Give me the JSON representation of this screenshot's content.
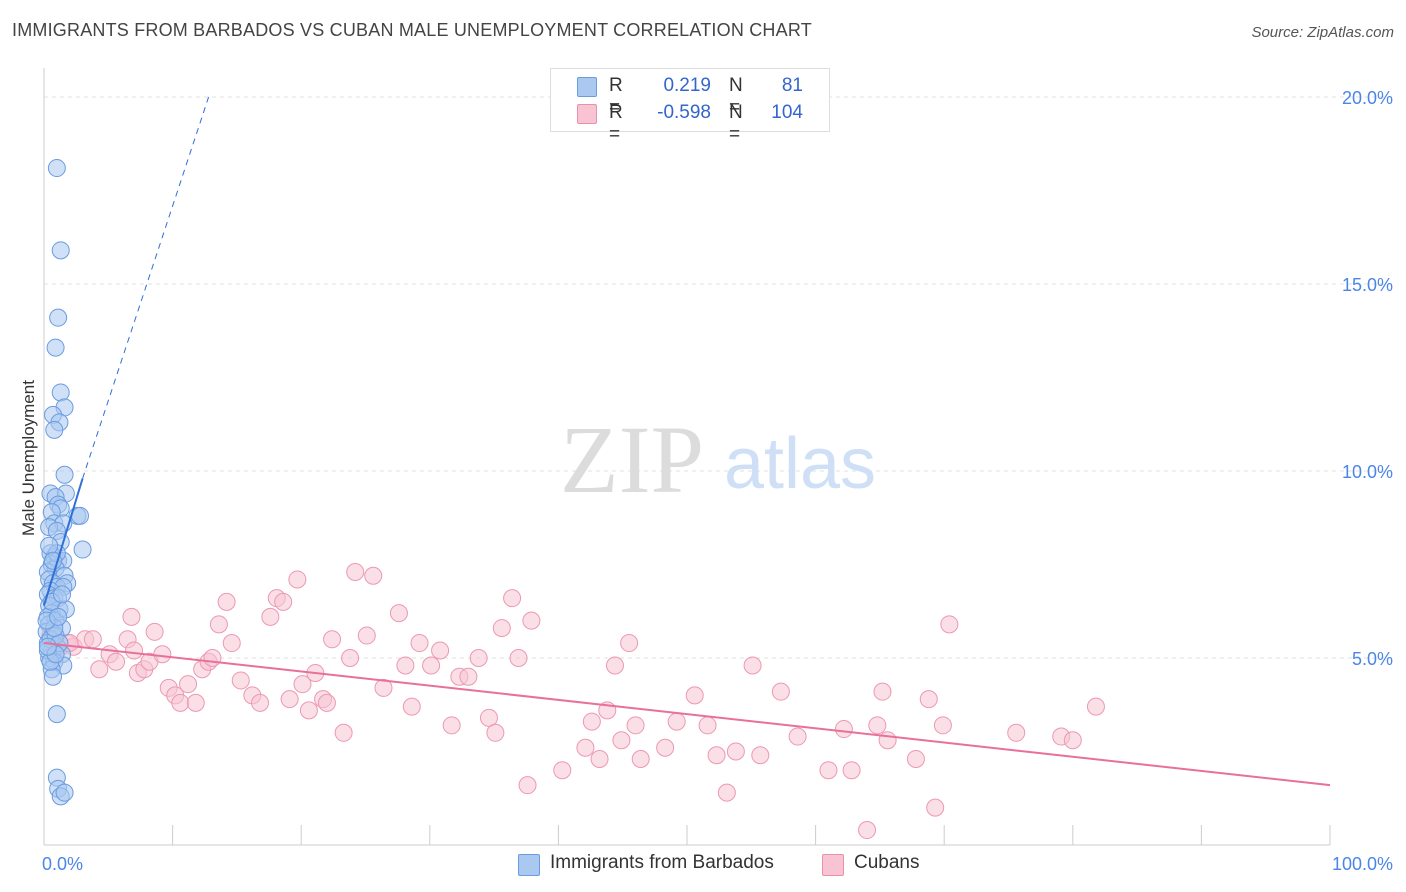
{
  "header": {
    "title": "IMMIGRANTS FROM BARBADOS VS CUBAN MALE UNEMPLOYMENT CORRELATION CHART",
    "source": "Source: ZipAtlas.com"
  },
  "watermark": {
    "zip": "ZIP",
    "atlas": "atlas"
  },
  "stats": [
    {
      "r_label": "R =",
      "r_value": "0.219",
      "n_label": "N =",
      "n_value": "81",
      "color": "#4a86e8"
    },
    {
      "r_label": "R =",
      "r_value": "-0.598",
      "n_label": "N =",
      "n_value": "104",
      "color": "#e8709a"
    }
  ],
  "legend": [
    {
      "label": "Immigrants from Barbados",
      "color": "#4a86e8"
    },
    {
      "label": "Cubans",
      "color": "#e8709a"
    }
  ],
  "colors": {
    "blue_fill": "#aac8f0",
    "blue_stroke": "#6a9ce0",
    "blue_line": "#2f6fd6",
    "pink_fill": "#f8c4d4",
    "pink_stroke": "#ec98b4",
    "pink_line": "#e8709a",
    "axis_text": "#4a86e8",
    "grid": "#e0e0e0"
  },
  "chart_data": {
    "type": "scatter",
    "title": "IMMIGRANTS FROM BARBADOS VS CUBAN MALE UNEMPLOYMENT CORRELATION CHART",
    "xlabel": "",
    "ylabel": "Male Unemployment",
    "xlim": [
      0,
      100
    ],
    "ylim": [
      0,
      20.5
    ],
    "x_tick_labels": [
      "0.0%",
      "100.0%"
    ],
    "y_ticks": [
      5,
      10,
      15,
      20
    ],
    "y_tick_labels": [
      "5.0%",
      "10.0%",
      "15.0%",
      "20.0%"
    ],
    "grid": true,
    "legend_position": "bottom-center",
    "series": [
      {
        "name": "Immigrants from Barbados",
        "points": [
          [
            1.0,
            18.1
          ],
          [
            1.3,
            15.9
          ],
          [
            1.1,
            14.1
          ],
          [
            0.9,
            13.3
          ],
          [
            1.3,
            12.1
          ],
          [
            1.6,
            11.7
          ],
          [
            0.7,
            11.5
          ],
          [
            1.2,
            11.3
          ],
          [
            0.8,
            11.1
          ],
          [
            1.6,
            9.9
          ],
          [
            0.5,
            9.4
          ],
          [
            1.7,
            9.4
          ],
          [
            0.9,
            9.3
          ],
          [
            1.1,
            9.1
          ],
          [
            1.3,
            9.0
          ],
          [
            0.6,
            8.9
          ],
          [
            2.6,
            8.8
          ],
          [
            2.8,
            8.8
          ],
          [
            0.8,
            8.6
          ],
          [
            1.5,
            8.6
          ],
          [
            0.4,
            8.5
          ],
          [
            1.0,
            8.4
          ],
          [
            1.3,
            8.1
          ],
          [
            3.0,
            7.9
          ],
          [
            0.5,
            7.8
          ],
          [
            0.8,
            7.7
          ],
          [
            1.1,
            7.6
          ],
          [
            1.5,
            7.6
          ],
          [
            0.6,
            7.5
          ],
          [
            0.9,
            7.4
          ],
          [
            0.3,
            7.3
          ],
          [
            1.6,
            7.2
          ],
          [
            0.4,
            7.1
          ],
          [
            0.7,
            7.0
          ],
          [
            1.8,
            7.0
          ],
          [
            1.0,
            6.9
          ],
          [
            1.5,
            6.9
          ],
          [
            0.5,
            6.8
          ],
          [
            0.3,
            6.7
          ],
          [
            0.8,
            6.6
          ],
          [
            1.1,
            6.6
          ],
          [
            0.4,
            6.4
          ],
          [
            1.2,
            6.3
          ],
          [
            0.6,
            6.2
          ],
          [
            0.3,
            6.1
          ],
          [
            0.9,
            6.0
          ],
          [
            0.4,
            5.9
          ],
          [
            1.4,
            5.8
          ],
          [
            0.2,
            5.7
          ],
          [
            0.7,
            5.6
          ],
          [
            0.5,
            5.5
          ],
          [
            0.3,
            5.4
          ],
          [
            1.0,
            5.3
          ],
          [
            0.6,
            5.2
          ],
          [
            1.4,
            5.1
          ],
          [
            0.4,
            5.0
          ],
          [
            0.8,
            4.9
          ],
          [
            1.5,
            4.8
          ],
          [
            0.6,
            4.7
          ],
          [
            0.7,
            4.5
          ],
          [
            1.0,
            3.5
          ],
          [
            1.0,
            1.8
          ],
          [
            1.1,
            1.5
          ],
          [
            1.3,
            1.3
          ],
          [
            1.6,
            1.4
          ],
          [
            0.5,
            5.5
          ],
          [
            0.9,
            5.6
          ],
          [
            1.2,
            5.4
          ],
          [
            0.3,
            5.2
          ],
          [
            0.6,
            6.5
          ],
          [
            1.0,
            7.8
          ],
          [
            0.4,
            8.0
          ],
          [
            1.7,
            6.3
          ],
          [
            0.8,
            5.8
          ],
          [
            0.2,
            6.0
          ],
          [
            0.5,
            4.9
          ],
          [
            1.1,
            6.1
          ],
          [
            0.9,
            5.1
          ],
          [
            0.3,
            5.3
          ],
          [
            1.4,
            6.7
          ],
          [
            0.7,
            7.6
          ]
        ]
      },
      {
        "name": "Cubans",
        "points": [
          [
            0.5,
            5.6
          ],
          [
            0.9,
            5.5
          ],
          [
            1.3,
            5.3
          ],
          [
            1.8,
            5.4
          ],
          [
            2.3,
            5.3
          ],
          [
            3.2,
            5.5
          ],
          [
            3.8,
            5.5
          ],
          [
            4.3,
            4.7
          ],
          [
            5.1,
            5.1
          ],
          [
            5.6,
            4.9
          ],
          [
            6.5,
            5.5
          ],
          [
            6.8,
            6.1
          ],
          [
            7.3,
            4.6
          ],
          [
            7.8,
            4.7
          ],
          [
            8.2,
            4.9
          ],
          [
            8.6,
            5.7
          ],
          [
            9.2,
            5.1
          ],
          [
            9.7,
            4.2
          ],
          [
            10.2,
            4.0
          ],
          [
            10.6,
            3.8
          ],
          [
            11.2,
            4.3
          ],
          [
            11.8,
            3.8
          ],
          [
            12.3,
            4.7
          ],
          [
            12.8,
            4.9
          ],
          [
            13.1,
            5.0
          ],
          [
            13.6,
            5.9
          ],
          [
            14.2,
            6.5
          ],
          [
            14.6,
            5.4
          ],
          [
            15.3,
            4.4
          ],
          [
            16.2,
            4.0
          ],
          [
            16.8,
            3.8
          ],
          [
            17.6,
            6.1
          ],
          [
            18.1,
            6.6
          ],
          [
            18.6,
            6.5
          ],
          [
            19.1,
            3.9
          ],
          [
            19.7,
            7.1
          ],
          [
            20.1,
            4.3
          ],
          [
            20.6,
            3.6
          ],
          [
            21.1,
            4.6
          ],
          [
            21.7,
            3.9
          ],
          [
            22.0,
            3.8
          ],
          [
            22.4,
            5.5
          ],
          [
            23.3,
            3.0
          ],
          [
            23.8,
            5.0
          ],
          [
            24.2,
            7.3
          ],
          [
            25.1,
            5.6
          ],
          [
            25.6,
            7.2
          ],
          [
            26.4,
            4.2
          ],
          [
            27.6,
            6.2
          ],
          [
            28.1,
            4.8
          ],
          [
            28.6,
            3.7
          ],
          [
            29.2,
            5.4
          ],
          [
            30.1,
            4.8
          ],
          [
            30.8,
            5.2
          ],
          [
            31.7,
            3.2
          ],
          [
            32.3,
            4.5
          ],
          [
            33.0,
            4.5
          ],
          [
            33.8,
            5.0
          ],
          [
            34.6,
            3.4
          ],
          [
            35.1,
            3.0
          ],
          [
            35.6,
            5.8
          ],
          [
            36.4,
            6.6
          ],
          [
            36.9,
            5.0
          ],
          [
            37.6,
            1.6
          ],
          [
            37.9,
            6.0
          ],
          [
            40.3,
            2.0
          ],
          [
            42.1,
            2.6
          ],
          [
            42.6,
            3.3
          ],
          [
            43.2,
            2.3
          ],
          [
            43.8,
            3.6
          ],
          [
            44.4,
            4.8
          ],
          [
            44.9,
            2.8
          ],
          [
            45.5,
            5.4
          ],
          [
            46.0,
            3.2
          ],
          [
            46.4,
            2.3
          ],
          [
            48.3,
            2.6
          ],
          [
            49.2,
            3.3
          ],
          [
            50.6,
            4.0
          ],
          [
            51.6,
            3.2
          ],
          [
            52.3,
            2.4
          ],
          [
            53.1,
            1.4
          ],
          [
            53.8,
            2.5
          ],
          [
            55.1,
            4.8
          ],
          [
            55.7,
            2.4
          ],
          [
            57.3,
            4.1
          ],
          [
            58.6,
            2.9
          ],
          [
            61.0,
            2.0
          ],
          [
            62.2,
            3.1
          ],
          [
            62.8,
            2.0
          ],
          [
            64.0,
            0.4
          ],
          [
            64.8,
            3.2
          ],
          [
            65.2,
            4.1
          ],
          [
            65.6,
            2.8
          ],
          [
            67.8,
            2.3
          ],
          [
            68.8,
            3.9
          ],
          [
            69.3,
            1.0
          ],
          [
            69.9,
            3.2
          ],
          [
            70.4,
            5.9
          ],
          [
            75.6,
            3.0
          ],
          [
            79.1,
            2.9
          ],
          [
            80.0,
            2.8
          ],
          [
            81.8,
            3.7
          ],
          [
            2.0,
            5.4
          ],
          [
            7.0,
            5.2
          ]
        ]
      }
    ],
    "trend_lines": [
      {
        "series": "Immigrants from Barbados",
        "style": "solid",
        "from": [
          0.0,
          6.4
        ],
        "to": [
          3.0,
          9.8
        ]
      },
      {
        "series": "Immigrants from Barbados",
        "style": "dashed",
        "from": [
          3.0,
          9.8
        ],
        "to": [
          12.8,
          20.0
        ]
      },
      {
        "series": "Cubans",
        "style": "solid",
        "from": [
          0.0,
          5.4
        ],
        "to": [
          100.0,
          1.6
        ]
      }
    ]
  }
}
